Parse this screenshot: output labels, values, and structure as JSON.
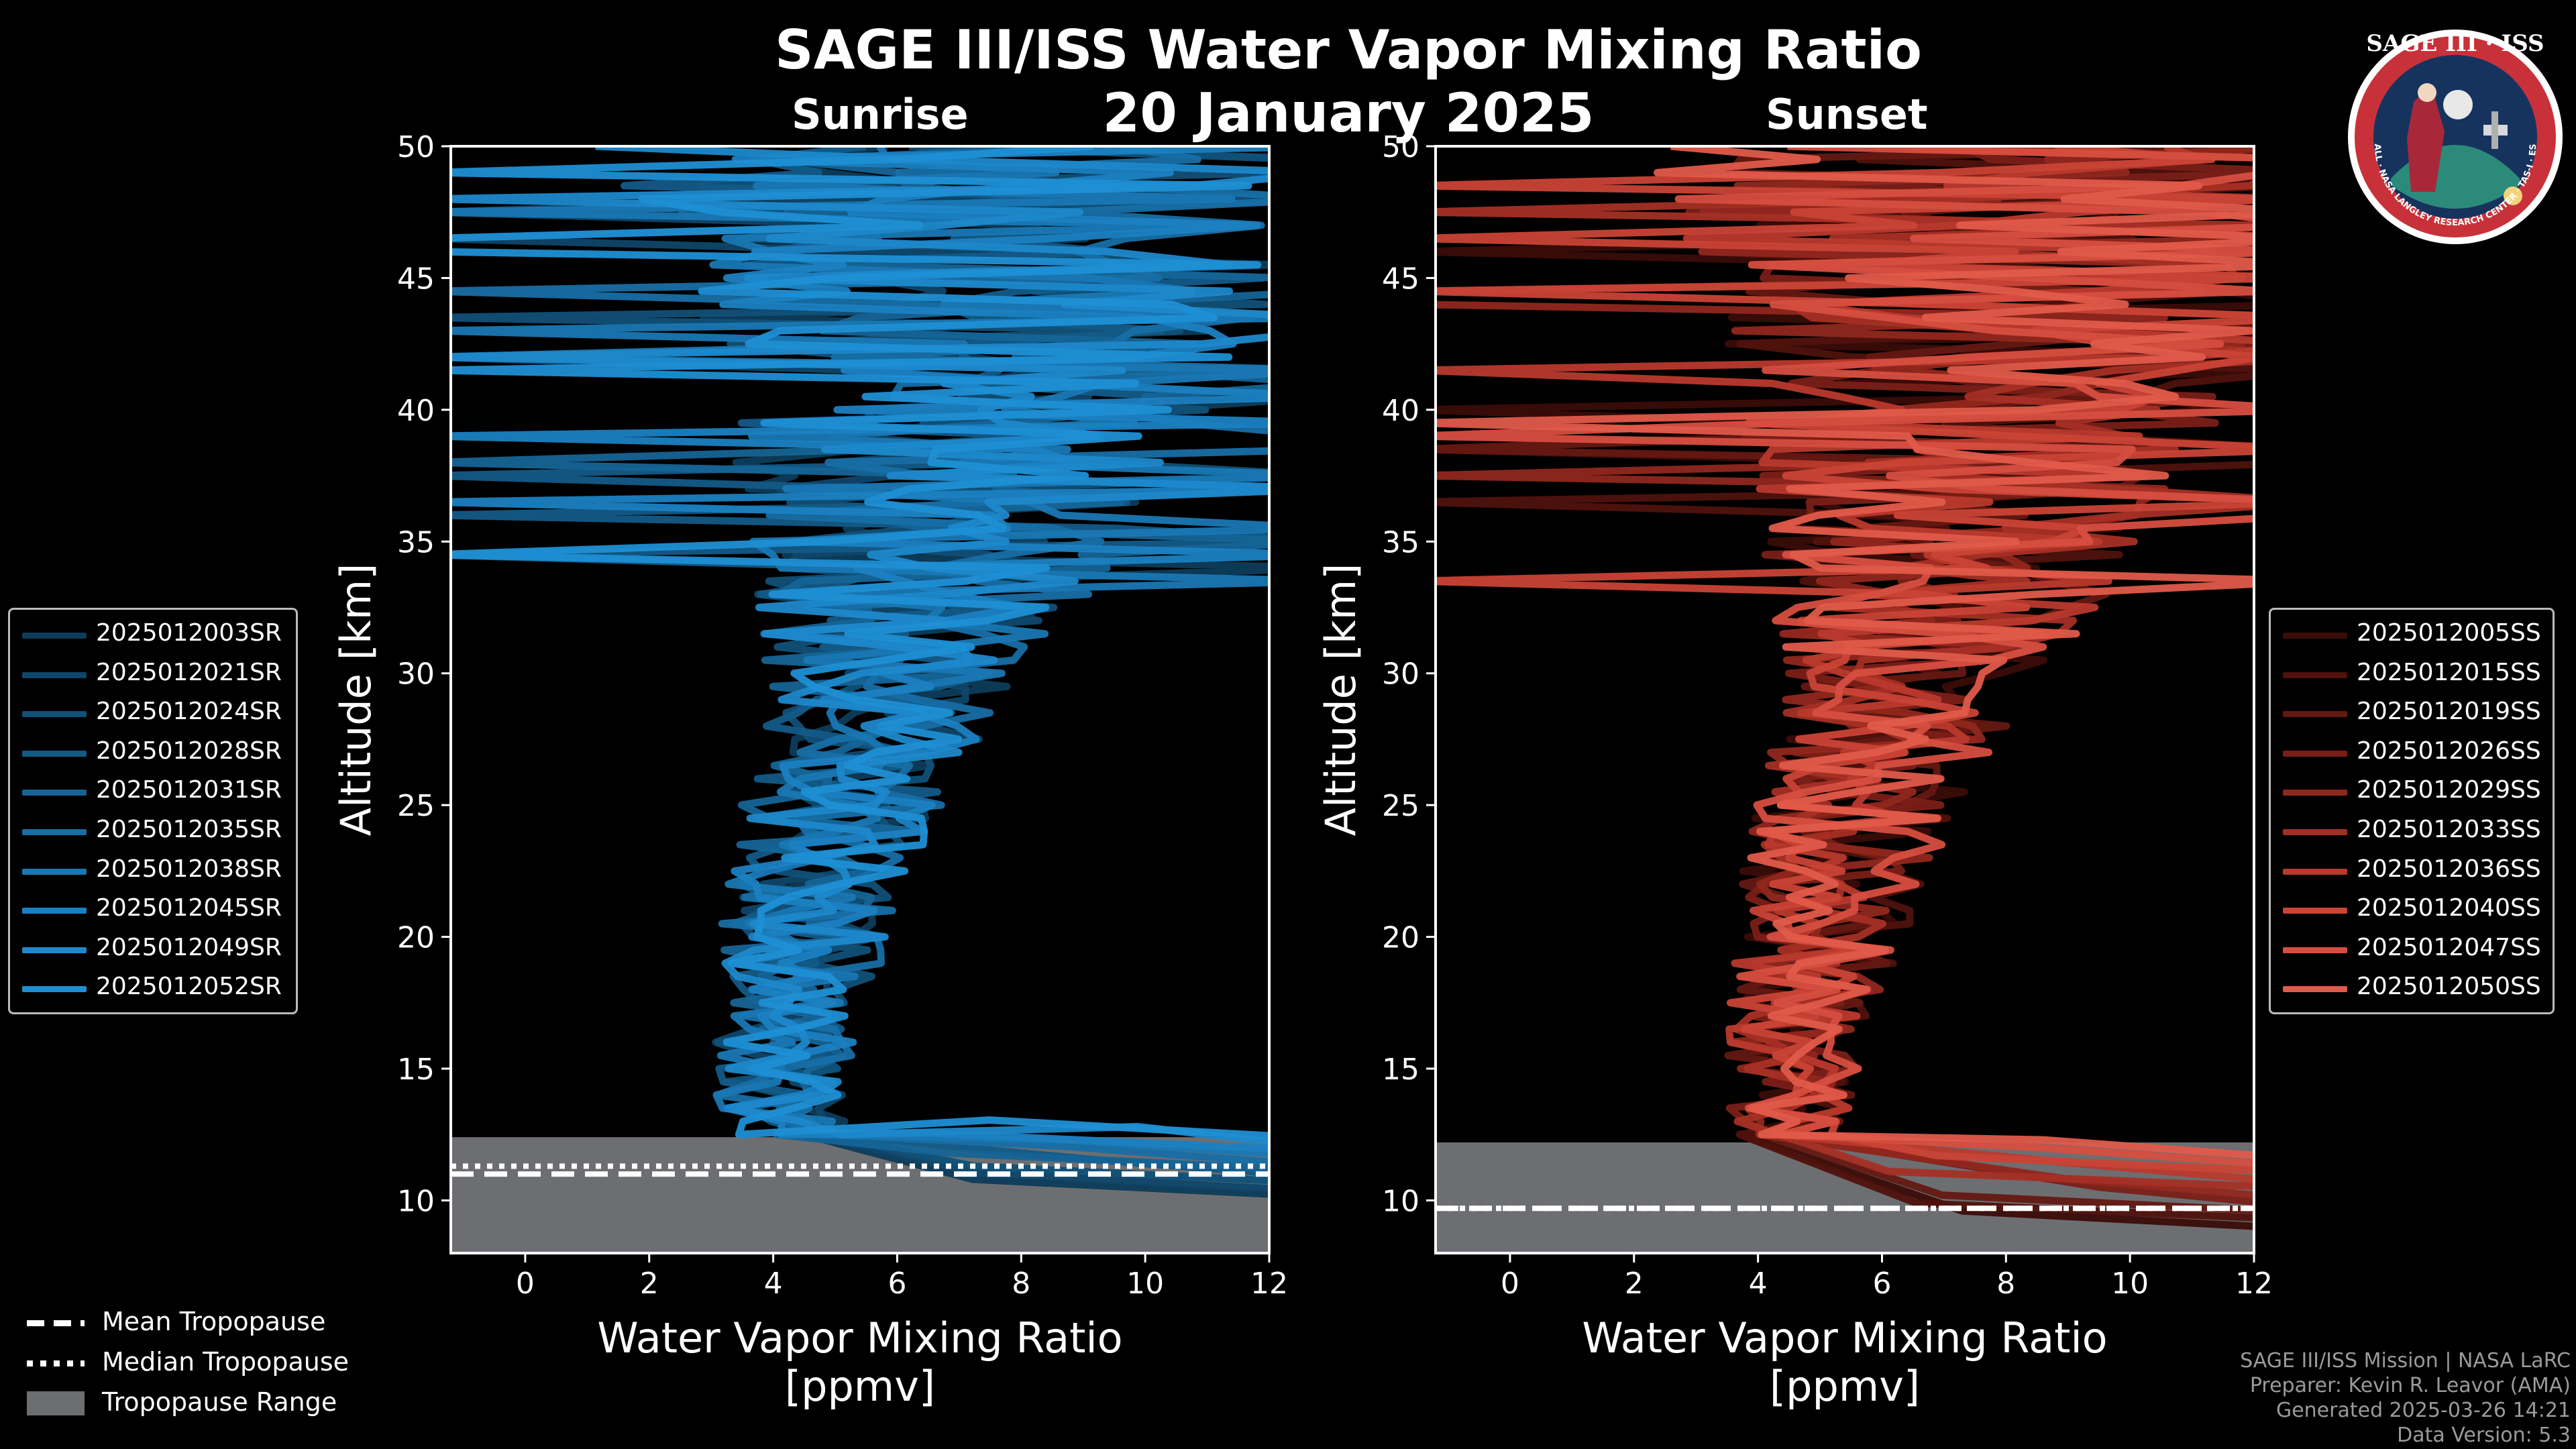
{
  "title": "SAGE III/ISS Water Vapor Mixing Ratio",
  "date_title": "20 January 2025",
  "footer": {
    "line1": "SAGE III/ISS Mission | NASA LaRC",
    "line2": "Preparer: Kevin R. Leavor (AMA)",
    "line3": "Generated 2025-03-26 14:21",
    "line4": "Data Version: 5.3"
  },
  "logo": {
    "title": "SAGE III · ISS",
    "ring_text": "BALL · NASA LANGLEY RESEARCH CENTER · TAS-I · ESA"
  },
  "colors": {
    "background": "#000000",
    "sunrise": "#1f8fd4",
    "sunset": "#e05a4a",
    "tropopause_range": "#6d6e71",
    "footer_text": "#9a9a9a"
  },
  "trop_legend": {
    "mean": "Mean Tropopause",
    "median": "Median Tropopause",
    "range": "Tropopause Range"
  },
  "chart_data": [
    {
      "type": "line",
      "subtitle": "Sunrise",
      "xlabel": "Water Vapor Mixing Ratio\n[ppmv]",
      "ylabel": "Altitude [km]",
      "xlim": [
        -1.2,
        12
      ],
      "ylim": [
        8,
        50
      ],
      "xticks": [
        0,
        2,
        4,
        6,
        8,
        10,
        12
      ],
      "yticks": [
        10,
        15,
        20,
        25,
        30,
        35,
        40,
        45,
        50
      ],
      "tropopause": {
        "mean_km": 11.0,
        "median_km": 11.3,
        "range_km": [
          8.0,
          12.4
        ]
      },
      "series": [
        {
          "name": "2025012003SR",
          "color": "#0d3c5a"
        },
        {
          "name": "2025012021SR",
          "color": "#0f4669"
        },
        {
          "name": "2025012024SR",
          "color": "#115078"
        },
        {
          "name": "2025012028SR",
          "color": "#135a87"
        },
        {
          "name": "2025012031SR",
          "color": "#156496"
        },
        {
          "name": "2025012035SR",
          "color": "#176ea5"
        },
        {
          "name": "2025012038SR",
          "color": "#1977b3"
        },
        {
          "name": "2025012045SR",
          "color": "#1b80c1"
        },
        {
          "name": "2025012049SR",
          "color": "#1d88cb"
        },
        {
          "name": "2025012052SR",
          "color": "#1f8fd4"
        }
      ],
      "center_profile": {
        "alt_km": [
          12,
          14,
          16,
          18,
          20,
          22,
          24,
          26,
          28,
          30,
          32,
          34,
          36,
          38,
          40,
          42,
          44,
          46,
          48,
          50
        ],
        "ppmv": [
          4.3,
          4.1,
          4.2,
          4.4,
          4.5,
          4.7,
          5.0,
          5.3,
          5.7,
          6.0,
          6.3,
          6.6,
          6.8,
          7.0,
          7.2,
          7.3,
          7.4,
          7.3,
          7.1,
          6.9
        ]
      }
    },
    {
      "type": "line",
      "subtitle": "Sunset",
      "xlabel": "Water Vapor Mixing Ratio\n[ppmv]",
      "ylabel": "Altitude [km]",
      "xlim": [
        -1.2,
        12
      ],
      "ylim": [
        8,
        50
      ],
      "xticks": [
        0,
        2,
        4,
        6,
        8,
        10,
        12
      ],
      "yticks": [
        10,
        15,
        20,
        25,
        30,
        35,
        40,
        45,
        50
      ],
      "tropopause": {
        "mean_km": 9.7,
        "median_km": 9.7,
        "range_km": [
          8.0,
          12.2
        ]
      },
      "series": [
        {
          "name": "2025012005SS",
          "color": "#3a0c08"
        },
        {
          "name": "2025012015SS",
          "color": "#4f120d"
        },
        {
          "name": "2025012019SS",
          "color": "#641812"
        },
        {
          "name": "2025012026SS",
          "color": "#7a1f18"
        },
        {
          "name": "2025012029SS",
          "color": "#90271e"
        },
        {
          "name": "2025012033SS",
          "color": "#a52f25"
        },
        {
          "name": "2025012036SS",
          "color": "#b9392d"
        },
        {
          "name": "2025012040SS",
          "color": "#c94336"
        },
        {
          "name": "2025012047SS",
          "color": "#d64e40"
        },
        {
          "name": "2025012050SS",
          "color": "#e05a4a"
        }
      ],
      "center_profile": {
        "alt_km": [
          12,
          14,
          16,
          18,
          20,
          22,
          24,
          26,
          28,
          30,
          32,
          34,
          36,
          38,
          40,
          42,
          44,
          46,
          48,
          50
        ],
        "ppmv": [
          4.6,
          4.5,
          4.6,
          4.8,
          5.0,
          5.2,
          5.5,
          5.8,
          6.2,
          6.5,
          6.8,
          7.0,
          7.2,
          7.4,
          7.6,
          7.8,
          7.9,
          8.0,
          8.0,
          7.9
        ]
      }
    }
  ]
}
